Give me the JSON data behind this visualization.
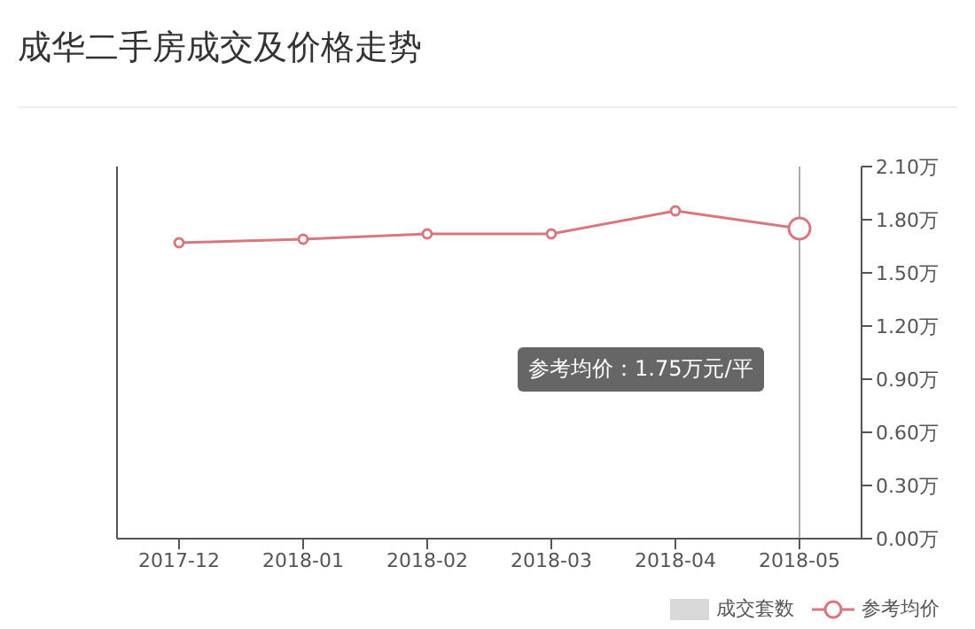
{
  "chart_data": {
    "type": "line",
    "title": "成华二手房成交及价格走势",
    "categories": [
      "2017-12",
      "2018-01",
      "2018-02",
      "2018-03",
      "2018-04",
      "2018-05"
    ],
    "series": [
      {
        "name": "成交套数",
        "type": "bar",
        "color": "#d9d9d9",
        "values": [
          null,
          null,
          null,
          null,
          null,
          null
        ]
      },
      {
        "name": "参考均价",
        "color": "#d9777f",
        "values": [
          1.67,
          1.69,
          1.72,
          1.72,
          1.85,
          1.75
        ]
      }
    ],
    "ylim": [
      0,
      2.1
    ],
    "yticks": [
      {
        "value": 0,
        "label": "0.00万"
      },
      {
        "value": 0.3,
        "label": "0.30万"
      },
      {
        "value": 0.6,
        "label": "0.60万"
      },
      {
        "value": 0.9,
        "label": "0.90万"
      },
      {
        "value": 1.2,
        "label": "1.20万"
      },
      {
        "value": 1.5,
        "label": "1.50万"
      },
      {
        "value": 1.8,
        "label": "1.80万"
      },
      {
        "value": 2.1,
        "label": "2.10万"
      }
    ],
    "ref_lines": [
      {
        "axis": "x",
        "value": "2018-05",
        "color": "#aaaaaa"
      }
    ],
    "annotations": [
      "参考均价：1.75万元/平"
    ],
    "legend": "bottom right",
    "marker": "circle",
    "grid": false
  }
}
